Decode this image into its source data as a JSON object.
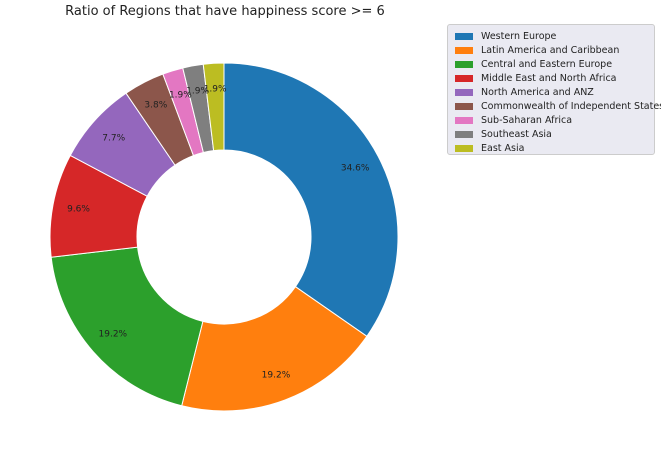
{
  "chart_data": {
    "type": "pie",
    "title": "Ratio of Regions that have happiness score >= 6",
    "donut": true,
    "start": "top",
    "direction": "clockwise",
    "legend_position": "top-right",
    "slices": [
      {
        "label": "Western Europe",
        "pct": 34.6,
        "pct_label": "34.6%",
        "color": "#1f77b4"
      },
      {
        "label": "Latin America and Caribbean",
        "pct": 19.2,
        "pct_label": "19.2%",
        "color": "#ff7f0e"
      },
      {
        "label": "Central and Eastern Europe",
        "pct": 19.2,
        "pct_label": "19.2%",
        "color": "#2ca02c"
      },
      {
        "label": "Middle East and North Africa",
        "pct": 9.6,
        "pct_label": "9.6%",
        "color": "#d62728"
      },
      {
        "label": "North America and ANZ",
        "pct": 7.7,
        "pct_label": "7.7%",
        "color": "#9467bd"
      },
      {
        "label": "Commonwealth of Independent States",
        "pct": 3.8,
        "pct_label": "3.8%",
        "color": "#8c564b"
      },
      {
        "label": "Sub-Saharan Africa",
        "pct": 1.9,
        "pct_label": "1.9%",
        "color": "#e377c2"
      },
      {
        "label": "Southeast Asia",
        "pct": 1.9,
        "pct_label": "1.9%",
        "color": "#7f7f7f"
      },
      {
        "label": "East Asia",
        "pct": 1.9,
        "pct_label": "1.9%",
        "color": "#bcbd22"
      }
    ]
  }
}
